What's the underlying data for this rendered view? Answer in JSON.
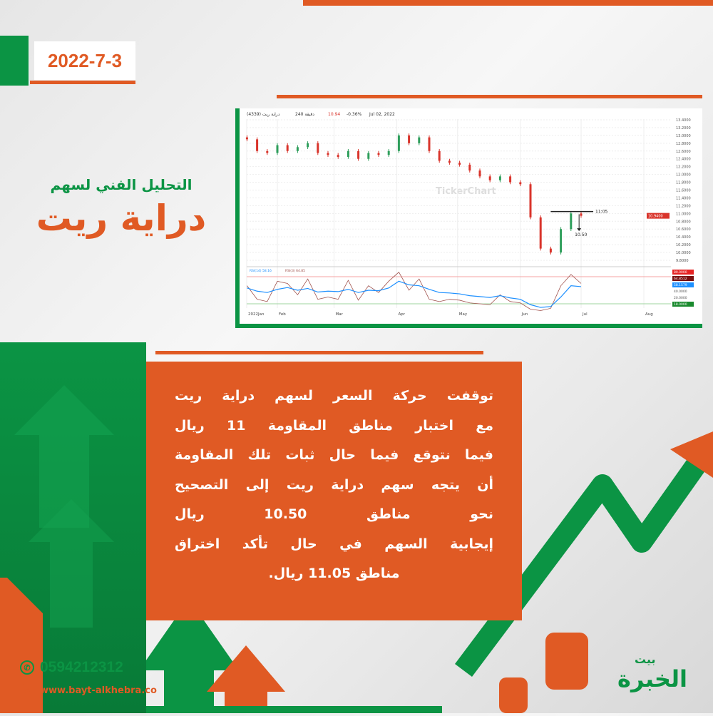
{
  "date": "2022-7-3",
  "heading": {
    "subtitle": "التحليل الفني لسهم",
    "title": "دراية ريت"
  },
  "chart_header": {
    "symbol": "دراية ريت (4339)",
    "interval": "دقيقة 240",
    "price": "10.94",
    "change": "-0.36%",
    "date": "Jul 02, 2022",
    "watermark": "TickerChart"
  },
  "colors": {
    "orange": "#e05a24",
    "green": "#0b9444",
    "up": "#2e9e5b",
    "down": "#d9342b"
  },
  "chart_data": {
    "type": "candlestick",
    "x_ticks": [
      "2022Jan",
      "Feb",
      "Mar",
      "Apr",
      "May",
      "Jun",
      "Jul",
      "Aug"
    ],
    "y_ticks": [
      "13.4000",
      "13.2000",
      "13.0000",
      "12.8000",
      "12.6000",
      "12.4000",
      "12.2000",
      "12.0000",
      "11.8000",
      "11.6000",
      "11.4000",
      "11.2000",
      "11.0000",
      "10.8000",
      "10.6000",
      "10.4000",
      "10.2000",
      "10.0000",
      "9.8000"
    ],
    "ylim": [
      9.8,
      13.4
    ],
    "dates": [
      "2022-01-17",
      "2022-01-22",
      "2022-01-27",
      "2022-02-01",
      "2022-02-06",
      "2022-02-11",
      "2022-02-16",
      "2022-02-21",
      "2022-02-26",
      "2022-03-03",
      "2022-03-08",
      "2022-03-13",
      "2022-03-18",
      "2022-03-23",
      "2022-03-28",
      "2022-04-02",
      "2022-04-07",
      "2022-04-12",
      "2022-04-17",
      "2022-04-22",
      "2022-04-27",
      "2022-05-02",
      "2022-05-07",
      "2022-05-12",
      "2022-05-17",
      "2022-05-22",
      "2022-05-27",
      "2022-06-01",
      "2022-06-06",
      "2022-06-11",
      "2022-06-16",
      "2022-06-21",
      "2022-06-26",
      "2022-07-01"
    ],
    "close": [
      12.9,
      12.6,
      12.55,
      12.75,
      12.6,
      12.7,
      12.8,
      12.55,
      12.5,
      12.45,
      12.6,
      12.4,
      12.55,
      12.5,
      12.6,
      13.0,
      12.8,
      12.95,
      12.6,
      12.35,
      12.3,
      12.25,
      12.1,
      11.95,
      11.85,
      11.95,
      11.8,
      11.75,
      10.9,
      10.1,
      10.0,
      10.6,
      11.0,
      10.94
    ],
    "last_price_label": "10.9400",
    "annotations": {
      "resistance": "11:05",
      "target": "10.50"
    },
    "resistance_value": 11.05,
    "target_value": 10.5,
    "indicator": {
      "legend": [
        "RSI(14) 58.16",
        "RSI(3) 64.85"
      ],
      "levels": [
        80,
        20
      ],
      "labels": [
        "80.0000",
        "64.8512",
        "58.1579",
        "40.0000",
        "20.0000",
        "18.0000"
      ],
      "rsi14": [
        55,
        48,
        45,
        52,
        56,
        50,
        54,
        46,
        48,
        47,
        52,
        45,
        50,
        49,
        55,
        70,
        62,
        60,
        52,
        45,
        44,
        42,
        38,
        36,
        34,
        38,
        33,
        30,
        18,
        12,
        14,
        35,
        60,
        58
      ],
      "rsi3": [
        60,
        30,
        25,
        70,
        65,
        40,
        75,
        30,
        35,
        30,
        72,
        28,
        60,
        45,
        70,
        90,
        50,
        75,
        30,
        25,
        30,
        28,
        22,
        20,
        18,
        40,
        25,
        22,
        8,
        5,
        10,
        60,
        85,
        65
      ]
    }
  },
  "body_lines": [
    "توقفت حركة السعر لسهم دراية ريت",
    "مع اختبار مناطق المقاومة 11 ريال",
    "فيما نتوقع فيما حال ثبات تلك المقاومة",
    "أن يتجه سهم دراية ريت إلى التصحيح",
    "نحو مناطق 10.50 ريال",
    "إيجابية السهم في حال تأكد اختراق",
    "مناطق 11.05 ريال."
  ],
  "contact": {
    "phone": "0594212312",
    "website": "www.bayt-alkhebra.co",
    "phone_icon": "whatsapp-icon",
    "web_icon": "globe-icon"
  },
  "logo": {
    "top": "بيت",
    "main": "الخبرة"
  }
}
